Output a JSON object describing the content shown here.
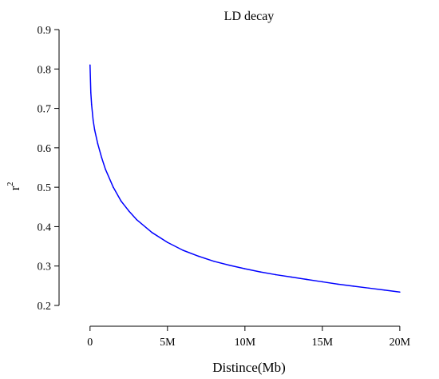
{
  "chart_data": {
    "type": "line",
    "title": "LD decay",
    "xlabel": "Distince(Mb)",
    "ylabel": "r",
    "ylabel_superscript": "2",
    "xlim": [
      -2000000,
      21500000
    ],
    "ylim": [
      0.2,
      0.9
    ],
    "x_ticks": [
      {
        "value": 0,
        "label": "0"
      },
      {
        "value": 5000000,
        "label": "5M"
      },
      {
        "value": 10000000,
        "label": "10M"
      },
      {
        "value": 15000000,
        "label": "15M"
      },
      {
        "value": 20000000,
        "label": "20M"
      }
    ],
    "y_ticks": [
      {
        "value": 0.2,
        "label": "0.2"
      },
      {
        "value": 0.3,
        "label": "0.3"
      },
      {
        "value": 0.4,
        "label": "0.4"
      },
      {
        "value": 0.5,
        "label": "0.5"
      },
      {
        "value": 0.6,
        "label": "0.6"
      },
      {
        "value": 0.7,
        "label": "0.7"
      },
      {
        "value": 0.8,
        "label": "0.8"
      },
      {
        "value": 0.9,
        "label": "0.9"
      }
    ],
    "grid": false,
    "series": [
      {
        "color": "#0000ff",
        "x": [
          0,
          50000,
          100000,
          200000,
          300000,
          500000,
          750000,
          1000000,
          1500000,
          2000000,
          2500000,
          3000000,
          4000000,
          5000000,
          6000000,
          7000000,
          8000000,
          9000000,
          10000000,
          11000000,
          12000000,
          13000000,
          14000000,
          15000000,
          16000000,
          17000000,
          18000000,
          19000000,
          20000000
        ],
        "y": [
          0.81,
          0.74,
          0.71,
          0.67,
          0.645,
          0.61,
          0.575,
          0.545,
          0.5,
          0.465,
          0.44,
          0.418,
          0.385,
          0.36,
          0.34,
          0.325,
          0.312,
          0.302,
          0.293,
          0.285,
          0.278,
          0.272,
          0.266,
          0.26,
          0.254,
          0.249,
          0.244,
          0.239,
          0.234
        ]
      }
    ]
  }
}
